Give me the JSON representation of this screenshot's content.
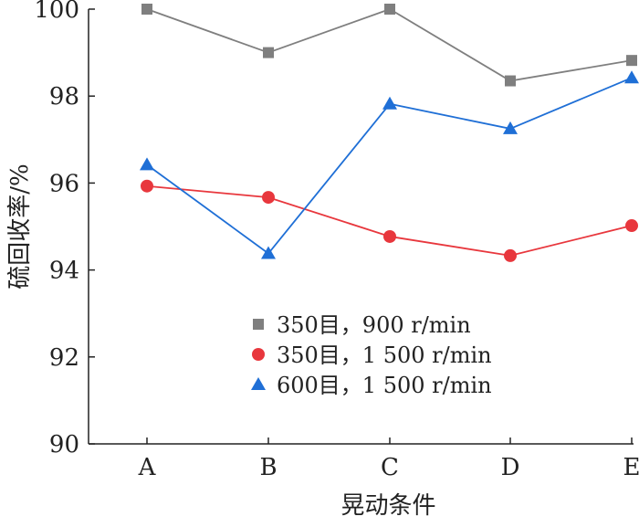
{
  "chart_data": {
    "type": "line",
    "title": "",
    "xlabel": "晃动条件",
    "ylabel": "硫回收率/%",
    "categories": [
      "A",
      "B",
      "C",
      "D",
      "E"
    ],
    "ylim": [
      90,
      100
    ],
    "yticks": [
      90,
      92,
      94,
      96,
      98,
      100
    ],
    "grid": false,
    "legend_position": "lower-center-inside",
    "series": [
      {
        "name": "350目，900 r/min",
        "values": [
          100.0,
          99.0,
          100.0,
          98.35,
          98.82
        ],
        "marker": "square",
        "color": "#7f7f7f"
      },
      {
        "name": "350目，1 500 r/min",
        "values": [
          95.93,
          95.67,
          94.77,
          94.33,
          95.02
        ],
        "marker": "circle",
        "color": "#e8373d"
      },
      {
        "name": "600目，1 500 r/min",
        "values": [
          96.42,
          94.38,
          97.82,
          97.25,
          98.42
        ],
        "marker": "triangle",
        "color": "#1f6fd6"
      }
    ]
  }
}
